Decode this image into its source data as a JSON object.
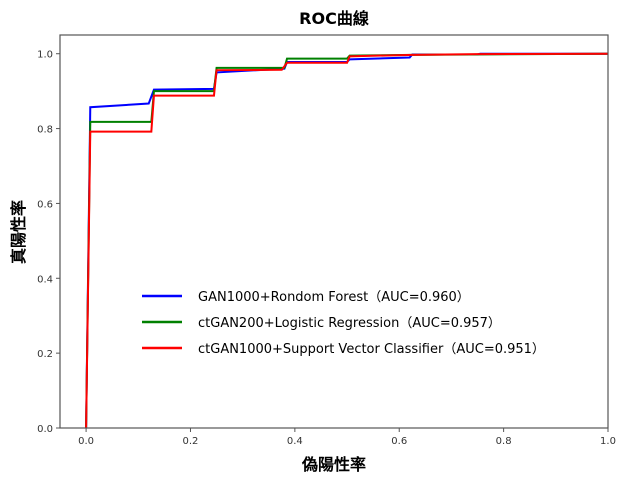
{
  "chart_data": {
    "type": "line",
    "title": "ROC曲線",
    "xlabel": "偽陽性率",
    "ylabel": "真陽性率",
    "xlim": [
      -0.05,
      1.0
    ],
    "ylim": [
      0.0,
      1.05
    ],
    "xticks": [
      "0.0",
      "0.2",
      "0.4",
      "0.6",
      "0.8",
      "1.0"
    ],
    "yticks": [
      "0.0",
      "0.2",
      "0.4",
      "0.6",
      "0.8",
      "1.0"
    ],
    "grid": false,
    "legend_position": "lower-right",
    "series": [
      {
        "name": "GAN1000+Rondom Forest（AUC=0.960）",
        "color": "#0000ff",
        "x": [
          0,
          0.008,
          0.12,
          0.13,
          0.245,
          0.25,
          0.38,
          0.385,
          0.5,
          0.505,
          0.62,
          0.625,
          0.75,
          0.755,
          1.0
        ],
        "y": [
          0,
          0.857,
          0.867,
          0.904,
          0.906,
          0.95,
          0.96,
          0.978,
          0.978,
          0.985,
          0.99,
          0.998,
          0.998,
          1.0,
          1.0
        ]
      },
      {
        "name": "ctGAN200+Logistic Regression（AUC=0.957）",
        "color": "#008000",
        "x": [
          0,
          0.008,
          0.125,
          0.13,
          0.245,
          0.25,
          0.38,
          0.385,
          0.5,
          0.505,
          0.625,
          1.0
        ],
        "y": [
          0,
          0.818,
          0.818,
          0.9,
          0.9,
          0.962,
          0.962,
          0.987,
          0.987,
          0.995,
          0.997,
          1.0
        ]
      },
      {
        "name": "ctGAN1000+Support Vector Classifier（AUC=0.951）",
        "color": "#ff0000",
        "x": [
          0,
          0.008,
          0.125,
          0.13,
          0.245,
          0.25,
          0.375,
          0.385,
          0.5,
          0.505,
          0.625,
          0.75,
          1.0
        ],
        "y": [
          0,
          0.792,
          0.792,
          0.888,
          0.888,
          0.956,
          0.957,
          0.976,
          0.976,
          0.993,
          0.997,
          0.999,
          1.0
        ]
      }
    ]
  }
}
